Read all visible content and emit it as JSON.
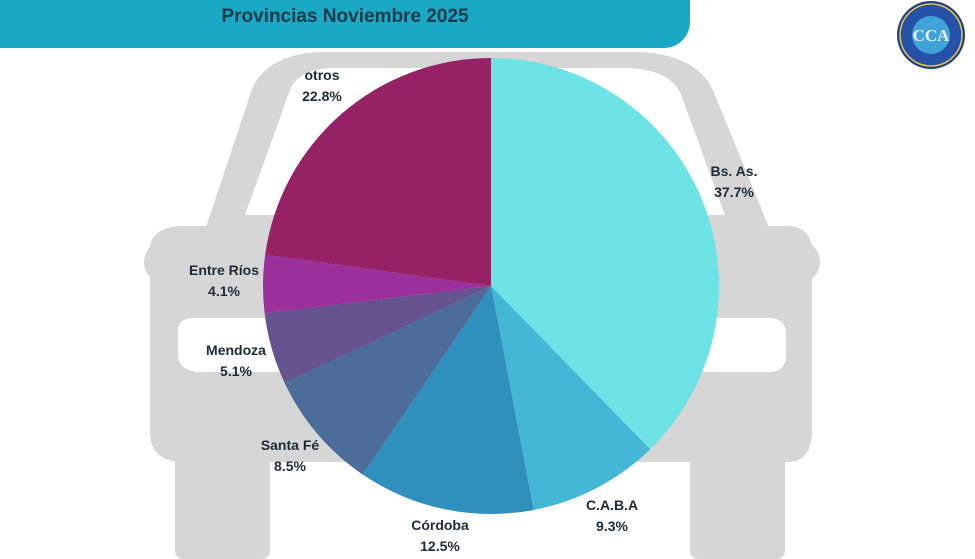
{
  "title": "Provincias Noviembre 2025",
  "logo": {
    "text": "CCA",
    "ring_text": "CÁMARA DEL COMERCIO AUTOMOTOR"
  },
  "colors": {
    "banner": "#1aa9c4",
    "car_silhouette": "#d6d6d6"
  },
  "chart_data": {
    "type": "pie",
    "start_angle_deg": 0,
    "direction": "clockwise",
    "slices": [
      {
        "label": "Bs. As.",
        "value": 37.7,
        "display": "37.7%",
        "color": "#6ee3e6"
      },
      {
        "label": "C.A.B.A",
        "value": 9.3,
        "display": "9.3%",
        "color": "#45b7d6"
      },
      {
        "label": "Córdoba",
        "value": 12.5,
        "display": "12.5%",
        "color": "#2f8fbd"
      },
      {
        "label": "Santa Fé",
        "value": 8.5,
        "display": "8.5%",
        "color": "#4c6d99"
      },
      {
        "label": "Mendoza",
        "value": 5.1,
        "display": "5.1%",
        "color": "#66528f"
      },
      {
        "label": "Entre Ríos",
        "value": 4.1,
        "display": "4.1%",
        "color": "#9b2f9c"
      },
      {
        "label": "otros",
        "value": 22.8,
        "display": "22.8%",
        "color": "#942265"
      }
    ]
  }
}
